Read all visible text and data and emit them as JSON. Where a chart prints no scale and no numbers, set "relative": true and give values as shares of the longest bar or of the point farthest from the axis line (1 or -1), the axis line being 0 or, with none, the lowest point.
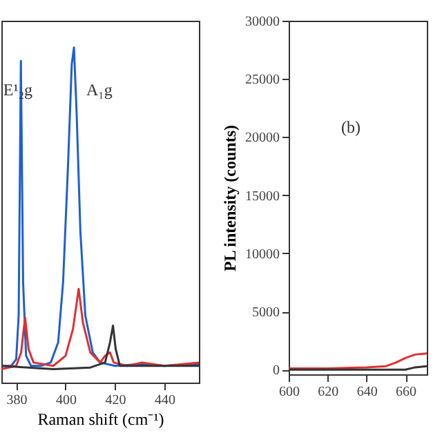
{
  "chart_data": [
    {
      "type": "line",
      "relative": true,
      "xlabel": "Raman shift (cm⁻¹)",
      "xlim": [
        374,
        454
      ],
      "xticks": [
        380,
        400,
        420,
        440
      ],
      "grid": false,
      "legend": false,
      "tick_labels": "x",
      "series": [
        {
          "color": "#1f5fd0",
          "x": [
            374,
            378,
            380,
            381,
            381.9,
            382.8,
            384,
            386,
            390,
            394,
            397,
            399,
            401,
            402.5,
            403.4,
            404.5,
            406,
            408,
            411,
            414,
            420,
            430,
            440,
            454
          ],
          "values": [
            0.05,
            0.05,
            0.07,
            0.2,
            0.96,
            0.3,
            0.08,
            0.05,
            0.05,
            0.06,
            0.12,
            0.3,
            0.65,
            0.95,
            1.0,
            0.8,
            0.45,
            0.2,
            0.09,
            0.06,
            0.05,
            0.055,
            0.05,
            0.055
          ]
        },
        {
          "color": "#e03030",
          "x": [
            374,
            380,
            382,
            383.6,
            385,
            387,
            395,
            400,
            403,
            405.3,
            407,
            410,
            414,
            416,
            418,
            419.5,
            425,
            431,
            440,
            454
          ],
          "values": [
            0.04,
            0.05,
            0.09,
            0.195,
            0.1,
            0.06,
            0.05,
            0.08,
            0.16,
            0.28,
            0.18,
            0.09,
            0.06,
            0.08,
            0.09,
            0.06,
            0.05,
            0.06,
            0.05,
            0.06
          ]
        },
        {
          "color": "#333333",
          "x": [
            374,
            385,
            395,
            410,
            416,
            418,
            419.2,
            420.3,
            422,
            454
          ],
          "values": [
            0.05,
            0.045,
            0.04,
            0.045,
            0.06,
            0.12,
            0.17,
            0.1,
            0.05,
            0.05
          ]
        }
      ],
      "annotations": [
        "E¹₂g",
        "A₁g"
      ]
    },
    {
      "type": "line",
      "ylabel": "PL intensity (counts)",
      "xlim": [
        600,
        671
      ],
      "xticks": [
        600,
        620,
        640,
        660
      ],
      "ylim": [
        -400,
        30000
      ],
      "yticks": [
        0,
        5000,
        10000,
        15000,
        20000,
        25000,
        30000
      ],
      "grid": false,
      "legend": false,
      "series": [
        {
          "color": "#e03030",
          "x": [
            600,
            620,
            640,
            650,
            655,
            660,
            665,
            671
          ],
          "values": [
            100,
            100,
            200,
            300,
            600,
            1000,
            1300,
            1400
          ]
        },
        {
          "color": "#333333",
          "x": [
            600,
            650,
            660,
            665,
            671
          ],
          "values": [
            0,
            0,
            0,
            200,
            300
          ]
        }
      ],
      "annotations": [
        "(b)"
      ]
    }
  ]
}
